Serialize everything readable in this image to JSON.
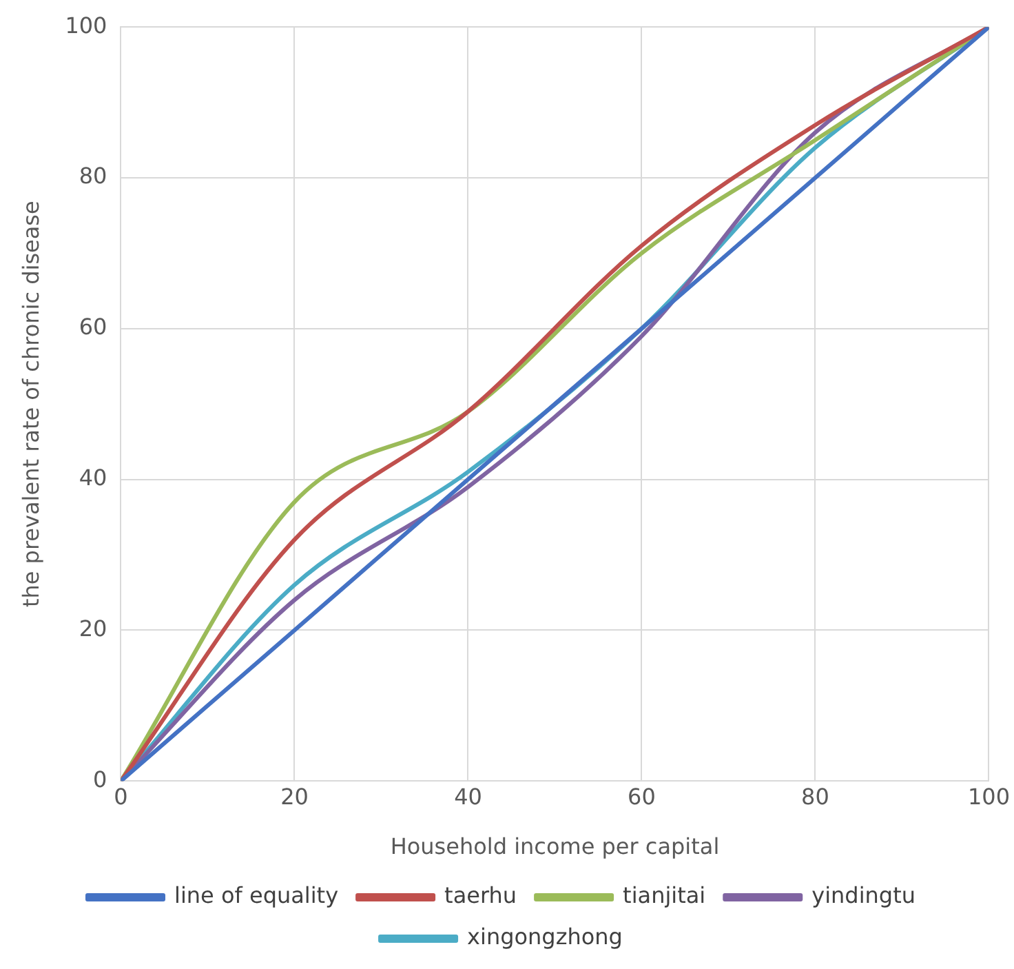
{
  "chart_data": {
    "type": "line",
    "xlabel": "Household income per capital",
    "ylabel": "the prevalent rate of chronic disease",
    "x": [
      0,
      20,
      40,
      60,
      80,
      100
    ],
    "series": [
      {
        "name": "line of equality",
        "color": "#4472c4",
        "values": [
          0,
          20,
          40,
          60,
          80,
          100
        ]
      },
      {
        "name": "taerhu",
        "color": "#c0504d",
        "values": [
          0,
          32,
          49,
          71,
          87,
          100
        ]
      },
      {
        "name": "tianjitai",
        "color": "#9bbb59",
        "values": [
          0,
          37,
          49,
          70,
          85,
          100
        ]
      },
      {
        "name": "yindingtu",
        "color": "#8064a2",
        "values": [
          0,
          24,
          39,
          59,
          86,
          100
        ]
      },
      {
        "name": "xingongzhong",
        "color": "#4bacc6",
        "values": [
          0,
          26,
          41,
          60,
          84,
          100
        ]
      }
    ],
    "xlim": [
      0,
      100
    ],
    "xticks": [
      0,
      20,
      40,
      60,
      80,
      100
    ],
    "ylim": [
      0,
      100
    ],
    "yticks": [
      0,
      20,
      40,
      60,
      80,
      100
    ],
    "grid": true,
    "legend": "bottom",
    "marker": "none",
    "line_style": "solid"
  }
}
